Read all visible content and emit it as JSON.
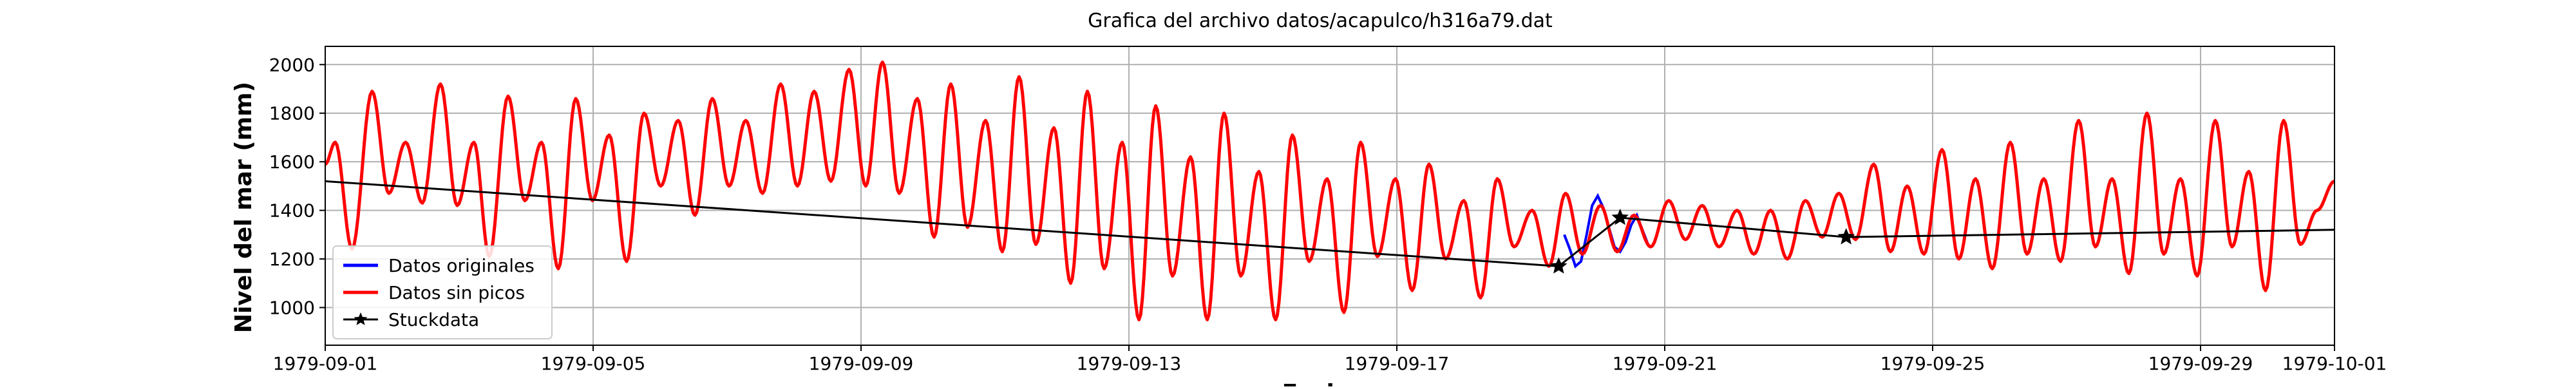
{
  "chart_data": {
    "type": "line",
    "title": "Grafica del archivo datos/acapulco/h316a79.dat",
    "xlabel": "Fecha",
    "ylabel": "Nivel del mar (mm)",
    "x_range": [
      "1979-09-01",
      "1979-10-01"
    ],
    "ylim": [
      845,
      2075
    ],
    "grid": true,
    "legend_position": "lower left",
    "x_ticks": [
      "1979-09-01",
      "1979-09-05",
      "1979-09-09",
      "1979-09-13",
      "1979-09-17",
      "1979-09-21",
      "1979-09-25",
      "1979-09-29",
      "1979-10-01"
    ],
    "y_ticks": [
      1000,
      1200,
      1400,
      1600,
      1800,
      2000
    ],
    "series": [
      {
        "name": "Datos originales",
        "color": "#0000ff",
        "style": "line",
        "x": [
          "1979-09-19T12:00",
          "1979-09-19T14:00",
          "1979-09-19T16:00",
          "1979-09-19T18:00",
          "1979-09-19T20:00",
          "1979-09-19T22:00",
          "1979-09-20T00:00",
          "1979-09-20T02:00",
          "1979-09-20T04:00",
          "1979-09-20T06:00",
          "1979-09-20T08:00",
          "1979-09-20T10:00",
          "1979-09-20T12:00",
          "1979-09-20T14:00",
          "1979-09-20T16:00",
          "1979-09-20T18:00"
        ],
        "y": [
          1300,
          1240,
          1170,
          1190,
          1300,
          1420,
          1460,
          1410,
          1330,
          1250,
          1230,
          1270,
          1340,
          1380,
          1320,
          1260
        ]
      },
      {
        "name": "Datos sin picos",
        "color": "#ff0000",
        "style": "line",
        "tidal_fit": {
          "t_days_from": "1979-09-01",
          "peaks": [
            {
              "t": 0.15,
              "y": 1680
            },
            {
              "t": 0.4,
              "y": 1240
            },
            {
              "t": 0.7,
              "y": 1890
            },
            {
              "t": 0.95,
              "y": 1470
            },
            {
              "t": 1.2,
              "y": 1680
            },
            {
              "t": 1.45,
              "y": 1430
            },
            {
              "t": 1.72,
              "y": 1920
            },
            {
              "t": 1.97,
              "y": 1420
            },
            {
              "t": 2.22,
              "y": 1680
            },
            {
              "t": 2.45,
              "y": 1210
            },
            {
              "t": 2.73,
              "y": 1870
            },
            {
              "t": 2.98,
              "y": 1440
            },
            {
              "t": 3.23,
              "y": 1680
            },
            {
              "t": 3.48,
              "y": 1160
            },
            {
              "t": 3.74,
              "y": 1860
            },
            {
              "t": 3.99,
              "y": 1440
            },
            {
              "t": 4.24,
              "y": 1710
            },
            {
              "t": 4.5,
              "y": 1190
            },
            {
              "t": 4.76,
              "y": 1800
            },
            {
              "t": 5.01,
              "y": 1500
            },
            {
              "t": 5.27,
              "y": 1770
            },
            {
              "t": 5.52,
              "y": 1380
            },
            {
              "t": 5.78,
              "y": 1860
            },
            {
              "t": 6.03,
              "y": 1500
            },
            {
              "t": 6.28,
              "y": 1770
            },
            {
              "t": 6.53,
              "y": 1470
            },
            {
              "t": 6.8,
              "y": 1920
            },
            {
              "t": 7.05,
              "y": 1500
            },
            {
              "t": 7.3,
              "y": 1890
            },
            {
              "t": 7.55,
              "y": 1520
            },
            {
              "t": 7.82,
              "y": 1980
            },
            {
              "t": 8.07,
              "y": 1500
            },
            {
              "t": 8.32,
              "y": 2010
            },
            {
              "t": 8.57,
              "y": 1470
            },
            {
              "t": 8.84,
              "y": 1860
            },
            {
              "t": 9.09,
              "y": 1290
            },
            {
              "t": 9.34,
              "y": 1920
            },
            {
              "t": 9.59,
              "y": 1330
            },
            {
              "t": 9.86,
              "y": 1770
            },
            {
              "t": 10.11,
              "y": 1230
            },
            {
              "t": 10.36,
              "y": 1950
            },
            {
              "t": 10.61,
              "y": 1260
            },
            {
              "t": 10.88,
              "y": 1740
            },
            {
              "t": 11.13,
              "y": 1100
            },
            {
              "t": 11.38,
              "y": 1890
            },
            {
              "t": 11.63,
              "y": 1160
            },
            {
              "t": 11.9,
              "y": 1680
            },
            {
              "t": 12.15,
              "y": 950
            },
            {
              "t": 12.4,
              "y": 1830
            },
            {
              "t": 12.65,
              "y": 1130
            },
            {
              "t": 12.92,
              "y": 1620
            },
            {
              "t": 13.17,
              "y": 950
            },
            {
              "t": 13.42,
              "y": 1800
            },
            {
              "t": 13.67,
              "y": 1130
            },
            {
              "t": 13.94,
              "y": 1560
            },
            {
              "t": 14.19,
              "y": 950
            },
            {
              "t": 14.44,
              "y": 1710
            },
            {
              "t": 14.69,
              "y": 1190
            },
            {
              "t": 14.96,
              "y": 1530
            },
            {
              "t": 15.21,
              "y": 980
            },
            {
              "t": 15.46,
              "y": 1680
            },
            {
              "t": 15.71,
              "y": 1210
            },
            {
              "t": 15.98,
              "y": 1530
            },
            {
              "t": 16.23,
              "y": 1070
            },
            {
              "t": 16.48,
              "y": 1590
            },
            {
              "t": 16.73,
              "y": 1200
            },
            {
              "t": 17.0,
              "y": 1440
            },
            {
              "t": 17.25,
              "y": 1040
            },
            {
              "t": 17.5,
              "y": 1530
            },
            {
              "t": 17.75,
              "y": 1250
            },
            {
              "t": 18.02,
              "y": 1400
            },
            {
              "t": 18.27,
              "y": 1170
            },
            {
              "t": 18.52,
              "y": 1470
            },
            {
              "t": 18.77,
              "y": 1220
            },
            {
              "t": 19.04,
              "y": 1420
            },
            {
              "t": 19.29,
              "y": 1230
            },
            {
              "t": 19.54,
              "y": 1380
            },
            {
              "t": 19.79,
              "y": 1250
            },
            {
              "t": 20.06,
              "y": 1440
            },
            {
              "t": 20.31,
              "y": 1280
            },
            {
              "t": 20.56,
              "y": 1420
            },
            {
              "t": 20.81,
              "y": 1250
            },
            {
              "t": 21.08,
              "y": 1400
            },
            {
              "t": 21.33,
              "y": 1220
            },
            {
              "t": 21.58,
              "y": 1400
            },
            {
              "t": 21.83,
              "y": 1200
            },
            {
              "t": 22.1,
              "y": 1440
            },
            {
              "t": 22.35,
              "y": 1290
            },
            {
              "t": 22.6,
              "y": 1470
            },
            {
              "t": 22.85,
              "y": 1280
            },
            {
              "t": 23.12,
              "y": 1590
            },
            {
              "t": 23.37,
              "y": 1230
            },
            {
              "t": 23.62,
              "y": 1500
            },
            {
              "t": 23.87,
              "y": 1220
            },
            {
              "t": 24.14,
              "y": 1650
            },
            {
              "t": 24.39,
              "y": 1200
            },
            {
              "t": 24.64,
              "y": 1530
            },
            {
              "t": 24.89,
              "y": 1160
            },
            {
              "t": 25.16,
              "y": 1680
            },
            {
              "t": 25.41,
              "y": 1220
            },
            {
              "t": 25.66,
              "y": 1530
            },
            {
              "t": 25.91,
              "y": 1190
            },
            {
              "t": 26.18,
              "y": 1770
            },
            {
              "t": 26.43,
              "y": 1250
            },
            {
              "t": 26.68,
              "y": 1530
            },
            {
              "t": 26.93,
              "y": 1140
            },
            {
              "t": 27.2,
              "y": 1800
            },
            {
              "t": 27.45,
              "y": 1220
            },
            {
              "t": 27.7,
              "y": 1530
            },
            {
              "t": 27.95,
              "y": 1130
            },
            {
              "t": 28.22,
              "y": 1770
            },
            {
              "t": 28.47,
              "y": 1250
            },
            {
              "t": 28.72,
              "y": 1560
            },
            {
              "t": 28.97,
              "y": 1070
            },
            {
              "t": 29.24,
              "y": 1770
            },
            {
              "t": 29.49,
              "y": 1260
            },
            {
              "t": 29.74,
              "y": 1400
            },
            {
              "t": 30.0,
              "y": 1520
            }
          ]
        }
      },
      {
        "name": "Stuckdata",
        "color": "#000000",
        "style": "line-star",
        "points": [
          {
            "x": "1979-09-01T00:00",
            "y": 1520
          },
          {
            "x": "1979-09-19T10:00",
            "y": 1170
          },
          {
            "x": "1979-09-20T08:00",
            "y": 1370
          },
          {
            "x": "1979-09-23T17:00",
            "y": 1290
          },
          {
            "x": "1979-10-01T00:00",
            "y": 1320
          }
        ],
        "markers": [
          {
            "x": "1979-09-19T10:00",
            "y": 1170
          },
          {
            "x": "1979-09-20T08:00",
            "y": 1370
          },
          {
            "x": "1979-09-23T17:00",
            "y": 1290
          }
        ]
      }
    ]
  }
}
